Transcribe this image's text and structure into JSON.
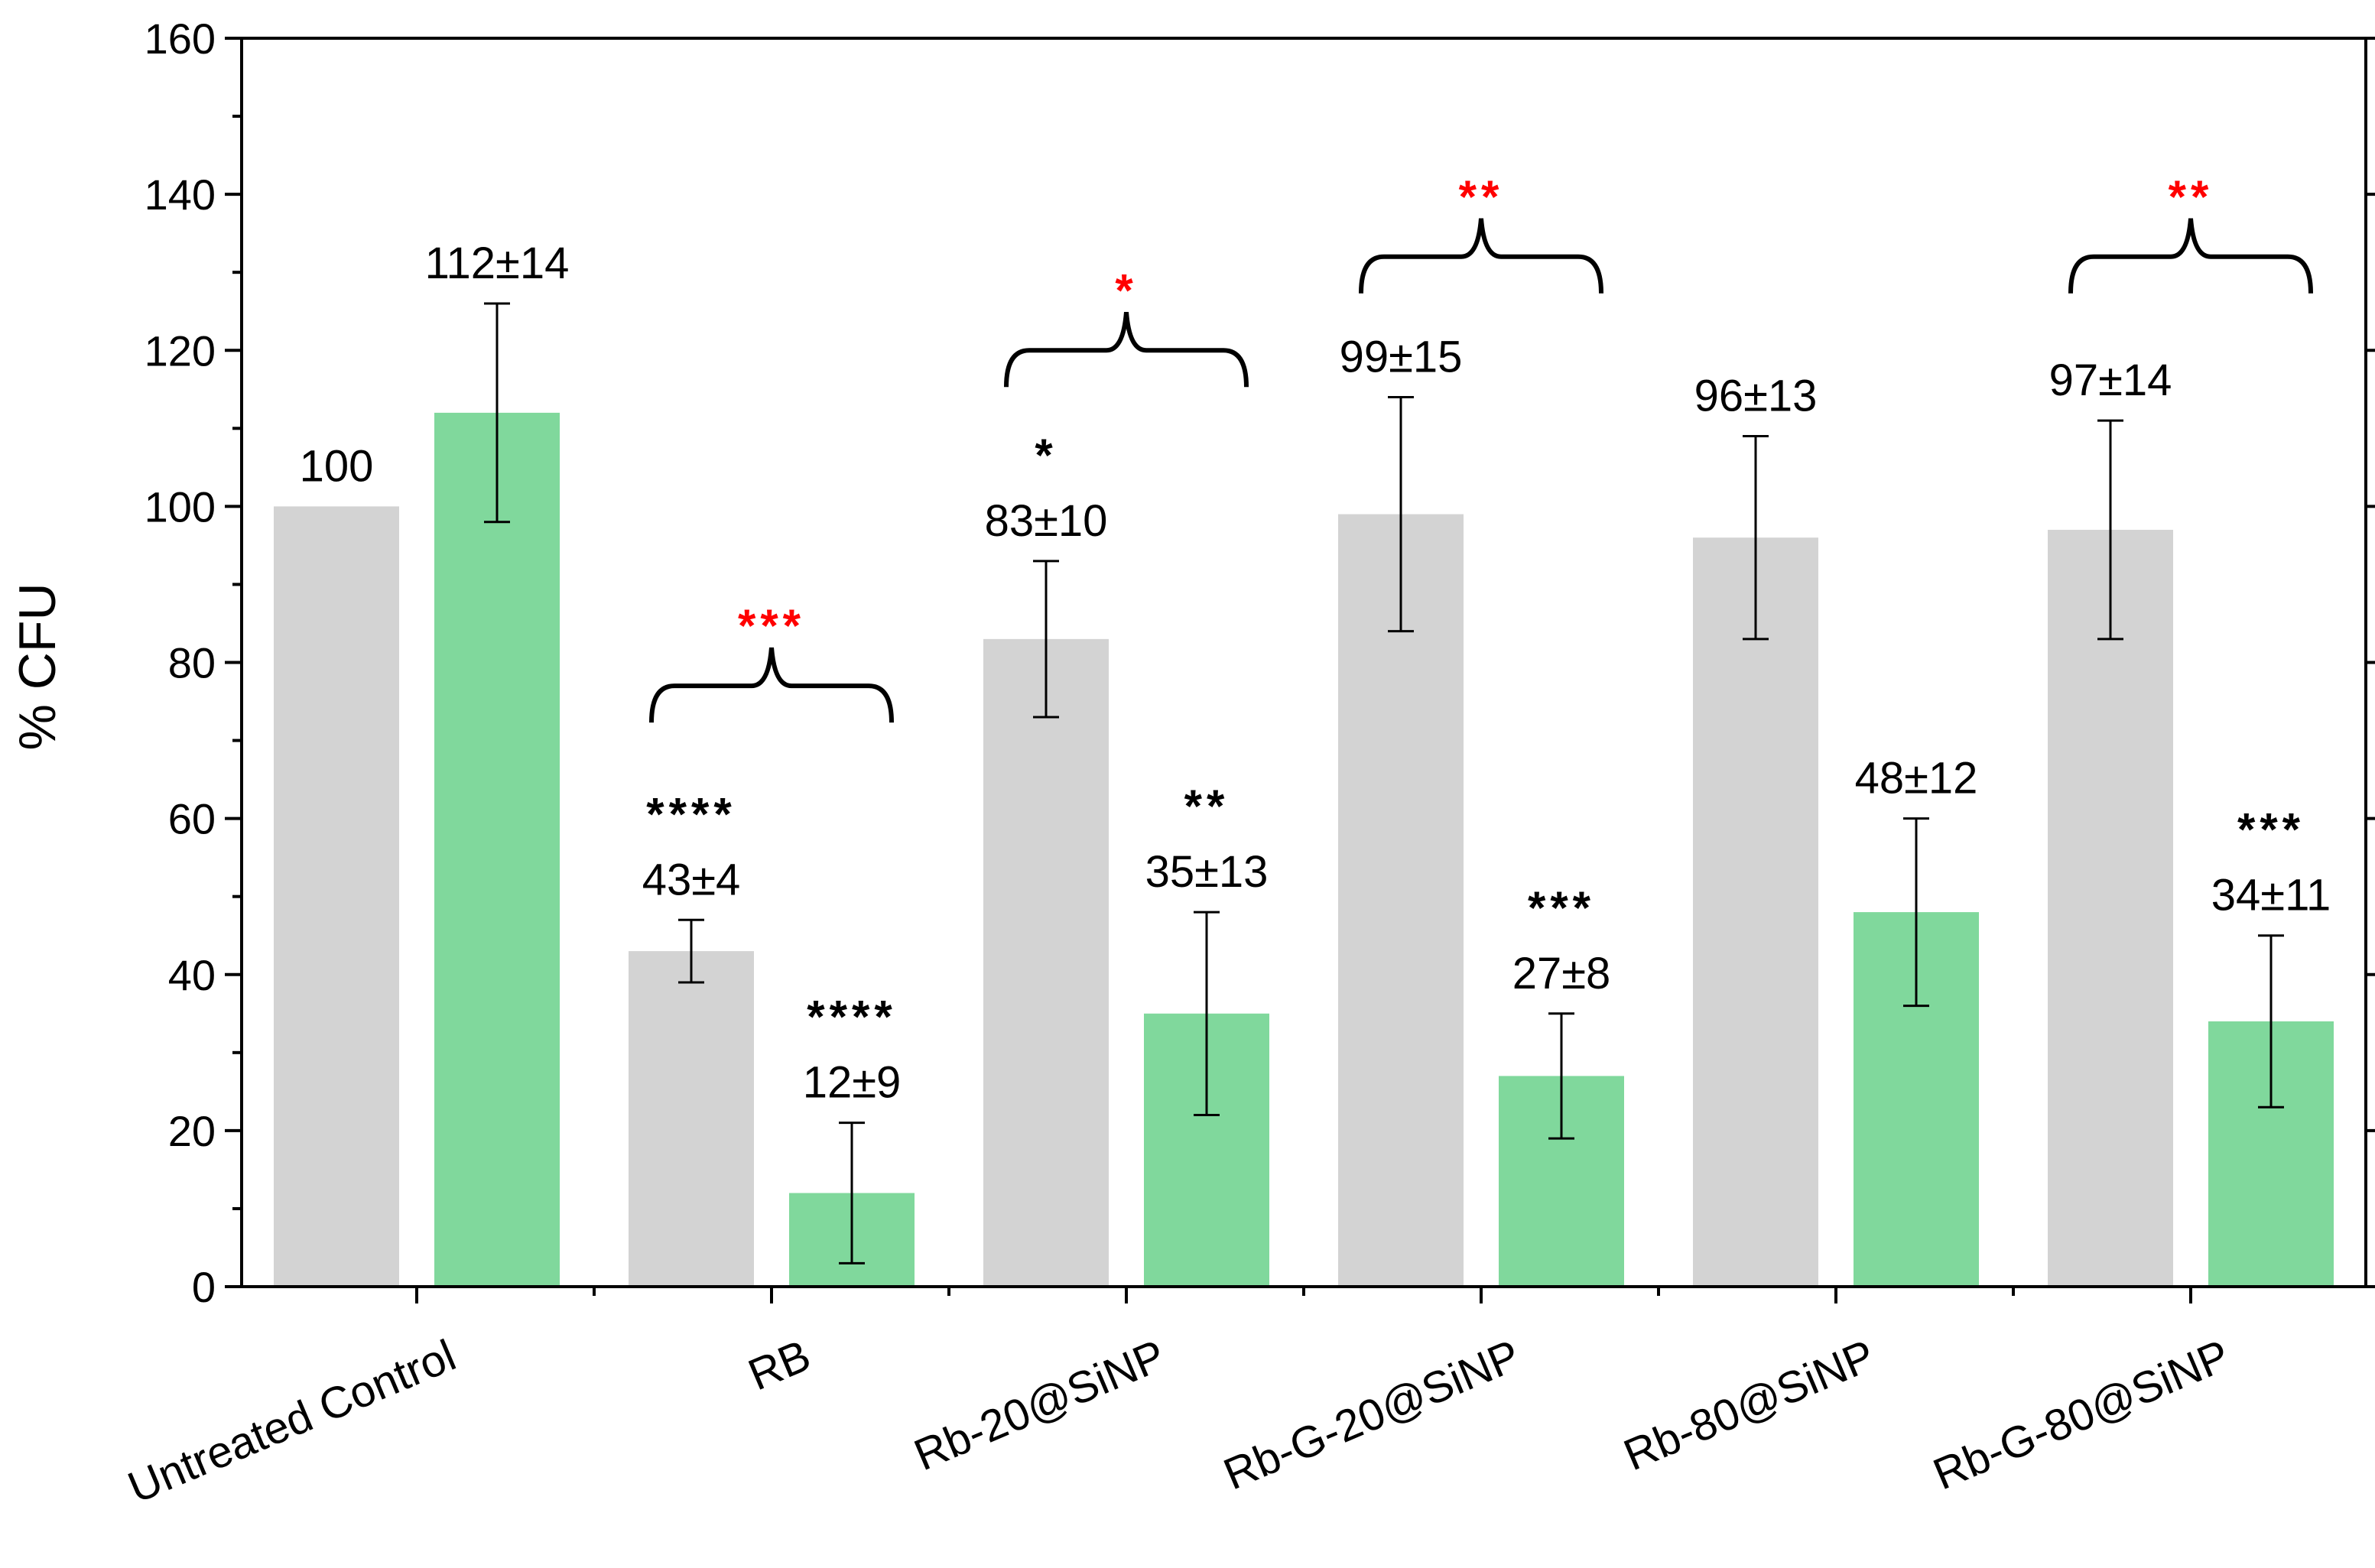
{
  "chart_data": {
    "type": "bar",
    "title": "",
    "xlabel": "",
    "ylabel": "% CFU",
    "ylim": [
      0,
      160
    ],
    "yticks": [
      0,
      20,
      40,
      60,
      80,
      100,
      120,
      140,
      160
    ],
    "grid": false,
    "legend": "none",
    "colors": {
      "gray": "#d3d3d3",
      "green": "#80d89c",
      "black_star": "#000000",
      "red_star": "#ff0000"
    },
    "categories": [
      "Untreated Control",
      "RB",
      "Rb-20@SiNP",
      "Rb-G-20@SiNP",
      "Rb-80@SiNP",
      "Rb-G-80@SiNP"
    ],
    "series": [
      {
        "name": "gray",
        "values": [
          100,
          43,
          83,
          99,
          96,
          97
        ],
        "errors": [
          null,
          4,
          10,
          15,
          13,
          14
        ],
        "labels": [
          "100",
          "43±4",
          "83±10",
          "99±15",
          "96±13",
          "97±14"
        ],
        "stars": [
          "",
          "****",
          "*",
          "",
          "",
          ""
        ]
      },
      {
        "name": "green",
        "values": [
          112,
          12,
          35,
          27,
          48,
          34
        ],
        "errors": [
          14,
          9,
          13,
          8,
          12,
          11
        ],
        "labels": [
          "112±14",
          "12±9",
          "35±13",
          "27±8",
          "48±12",
          "34±11"
        ],
        "stars": [
          "",
          "****",
          "**",
          "***",
          "",
          "***"
        ]
      }
    ],
    "comparisons": [
      {
        "category": "RB",
        "stars": "***",
        "bracket_y": 77,
        "color": "red"
      },
      {
        "category": "Rb-20@SiNP",
        "stars": "*",
        "bracket_y": 120,
        "color": "red"
      },
      {
        "category": "Rb-G-20@SiNP",
        "stars": "**",
        "bracket_y": 132,
        "color": "red"
      },
      {
        "category": "Rb-G-80@SiNP",
        "stars": "**",
        "bracket_y": 132,
        "color": "red"
      }
    ]
  }
}
